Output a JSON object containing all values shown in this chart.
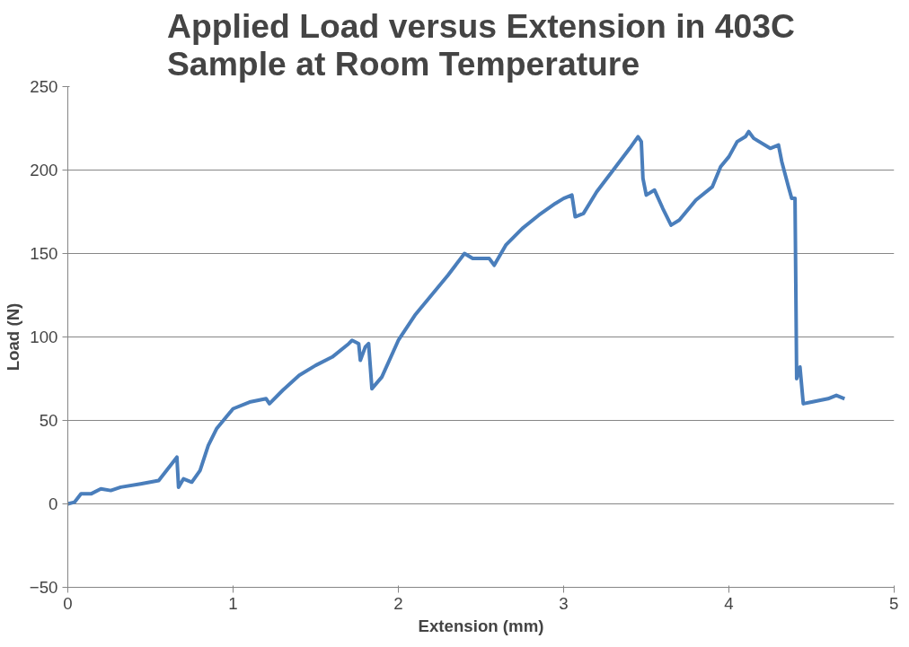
{
  "chart_data": {
    "type": "line",
    "title": "Applied Load versus Extension in 403C\nSample at Room Temperature",
    "xlabel": "Extension (mm)",
    "ylabel": "Load (N)",
    "x": [
      0,
      0.04,
      0.08,
      0.14,
      0.2,
      0.26,
      0.32,
      0.44,
      0.55,
      0.66,
      0.67,
      0.7,
      0.75,
      0.8,
      0.85,
      0.9,
      1.0,
      1.1,
      1.2,
      1.22,
      1.3,
      1.4,
      1.5,
      1.6,
      1.7,
      1.72,
      1.76,
      1.77,
      1.8,
      1.82,
      1.84,
      1.9,
      2.0,
      2.1,
      2.2,
      2.3,
      2.4,
      2.45,
      2.55,
      2.58,
      2.65,
      2.75,
      2.85,
      2.95,
      3.0,
      3.05,
      3.07,
      3.12,
      3.2,
      3.3,
      3.4,
      3.45,
      3.47,
      3.48,
      3.5,
      3.55,
      3.6,
      3.65,
      3.7,
      3.8,
      3.9,
      3.95,
      4.0,
      4.05,
      4.1,
      4.12,
      4.15,
      4.25,
      4.3,
      4.32,
      4.36,
      4.38,
      4.4,
      4.41,
      4.43,
      4.45,
      4.5,
      4.6,
      4.65,
      4.7
    ],
    "series": [
      {
        "color": "#4a7ebb",
        "values": [
          0,
          1,
          6,
          6,
          9,
          8,
          10,
          12,
          14,
          28,
          10,
          15,
          13,
          20,
          35,
          45,
          57,
          61,
          63,
          60,
          68,
          77,
          83,
          88,
          96,
          98,
          96,
          86,
          94,
          96,
          69,
          76,
          98,
          113,
          125,
          137,
          150,
          147,
          147,
          143,
          155,
          165,
          173,
          180,
          183,
          185,
          172,
          174,
          187,
          200,
          213,
          220,
          217,
          195,
          185,
          188,
          177,
          167,
          170,
          182,
          190,
          202,
          208,
          217,
          220,
          223,
          219,
          213,
          215,
          205,
          190,
          183,
          183,
          75,
          82,
          60,
          61,
          63,
          65,
          63
        ]
      }
    ],
    "xlim": [
      0,
      5
    ],
    "xticks": [
      0,
      1,
      2,
      3,
      4,
      5
    ],
    "ylim": [
      -50,
      250
    ],
    "yticks": [
      -50,
      0,
      50,
      100,
      150,
      200,
      250
    ],
    "grid": "y",
    "marker": "none",
    "line_style": "solid"
  }
}
